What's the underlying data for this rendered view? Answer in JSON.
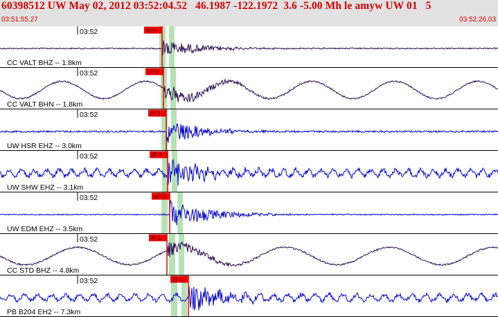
{
  "header": {
    "title": "60398512 UW May 02, 2012 03:52:04.52   46.1987 -122.1972  3.6 -5.00 Mh le amyw UW 01   5",
    "start_time": "03:51:55.27",
    "end_time": "03:52:26.03"
  },
  "colors": {
    "header_bg": "#e2e2e2",
    "header_text": "#d40000",
    "trace_blue": "#0000cc",
    "trace_purple": "#2a0a50",
    "pick_red": "#ee0000",
    "window_green": "#b4e2b4"
  },
  "traces": [
    {
      "time_label": "03:52",
      "station_label": "CC VALT BHZ -- 1.8km",
      "pick_label": "iP 0",
      "color": "purple",
      "amplitude": 0.55,
      "noise": 0.18,
      "wave_period": 0
    },
    {
      "time_label": "03:52",
      "station_label": "CC VALT BHN -- 1.8km",
      "pick_label": "iS 0",
      "color": "purple",
      "amplitude": 0.6,
      "noise": 0.2,
      "wave_period": 120
    },
    {
      "time_label": "03:52",
      "station_label": "UW HSR EHZ -- 3.0km",
      "pick_label": "iP 1",
      "color": "blue",
      "amplitude": 0.7,
      "noise": 0.25,
      "wave_period": 0
    },
    {
      "time_label": "03:52",
      "station_label": "UW SHW EHZ -- 3.1km",
      "pick_label": "iP 4",
      "color": "blue",
      "amplitude": 0.85,
      "noise": 0.65,
      "wave_period": 18
    },
    {
      "time_label": "03:52",
      "station_label": "UW EDM EHZ -- 3.5km",
      "pick_label": "eP 2",
      "color": "blue",
      "amplitude": 0.9,
      "noise": 0.15,
      "wave_period": 0
    },
    {
      "time_label": "03:52",
      "station_label": "CC STD BHZ -- 4.8km",
      "pick_label": "iP 1",
      "color": "purple",
      "amplitude": 0.5,
      "noise": 0.22,
      "wave_period": 150
    },
    {
      "time_label": "03:52",
      "station_label": "PB B204 EH2 -- 7.3km",
      "pick_label": "iS 1",
      "color": "blue",
      "amplitude": 0.8,
      "noise": 0.55,
      "wave_period": 20
    }
  ]
}
